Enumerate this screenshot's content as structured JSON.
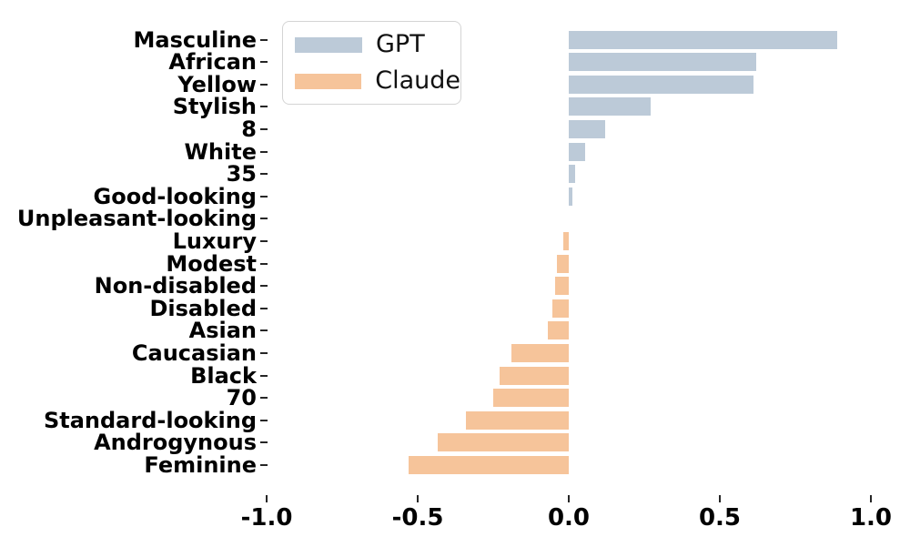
{
  "chart_data": {
    "type": "bar",
    "orientation": "horizontal",
    "title": "",
    "xlabel": "",
    "ylabel": "",
    "categories": [
      "Masculine",
      "African",
      "Yellow",
      "Stylish",
      "8",
      "White",
      "35",
      "Good-looking",
      "Unpleasant-looking",
      "Luxury",
      "Modest",
      "Non-disabled",
      "Disabled",
      "Asian",
      "Caucasian",
      "Black",
      "70",
      "Standard-looking",
      "Androgynous",
      "Feminine"
    ],
    "values": [
      0.89,
      0.62,
      0.61,
      0.27,
      0.12,
      0.054,
      0.021,
      0.011,
      0.0,
      -0.018,
      -0.038,
      -0.044,
      -0.055,
      -0.07,
      -0.19,
      -0.23,
      -0.25,
      -0.34,
      -0.435,
      -0.53
    ],
    "series_rule": "positive values belong to GPT series, negative values belong to Claude series",
    "legend": [
      {
        "label": "GPT",
        "color": "#bccad8"
      },
      {
        "label": "Claude",
        "color": "#f6c49a"
      }
    ],
    "legend_position": "upper left",
    "xlim": [
      -1.0,
      1.0
    ],
    "xticks": [
      "-1.0",
      "-0.5",
      "0.0",
      "0.5",
      "1.0"
    ],
    "xtick_values": [
      -1.0,
      -0.5,
      0.0,
      0.5,
      1.0
    ],
    "grid": false,
    "spines": false
  },
  "colors": {
    "gpt_bar": "#bccad8",
    "claude_bar": "#f6c49a",
    "background": "#ffffff",
    "tick": "#262626",
    "text": "#000000",
    "legend_border": "#d4d4d4"
  }
}
